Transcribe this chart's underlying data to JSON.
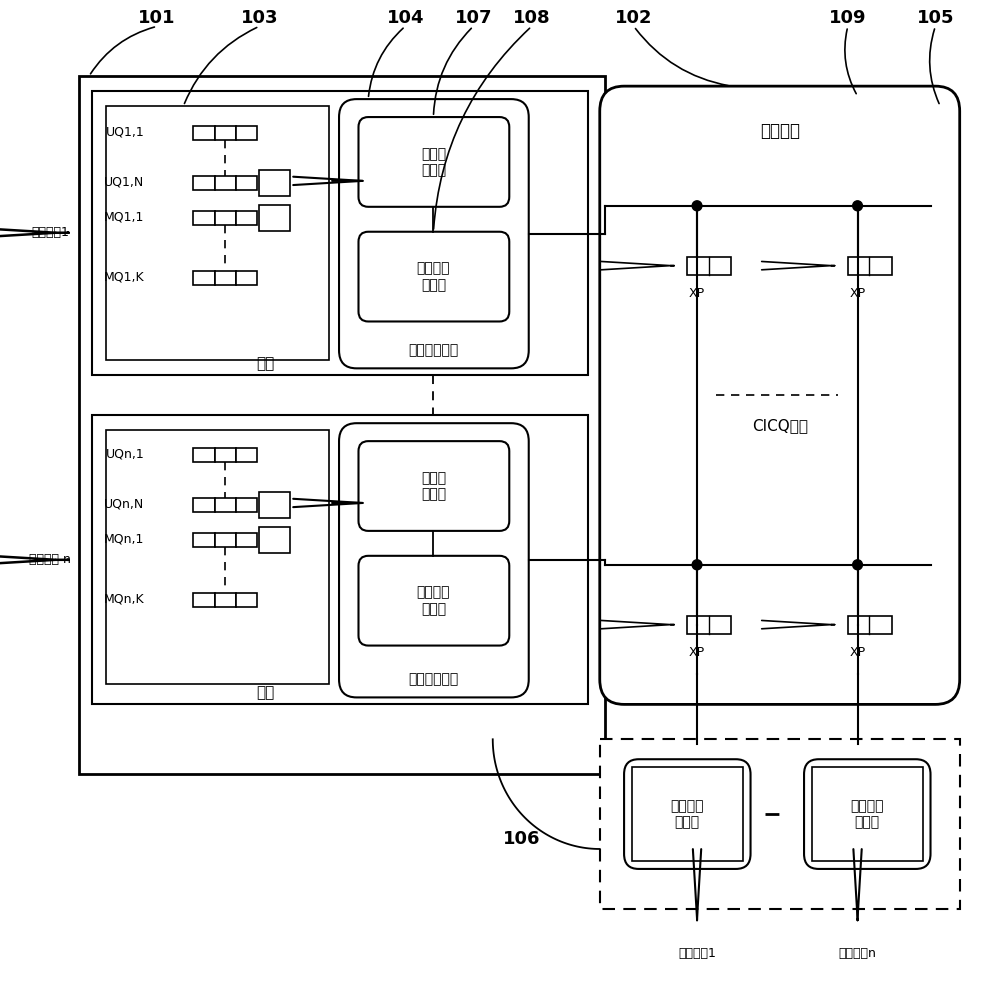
{
  "bg_color": "#ffffff",
  "fig_width": 10.0,
  "fig_height": 9.81,
  "labels": {
    "101": "101",
    "102": "102",
    "103": "103",
    "104": "104",
    "105": "105",
    "106": "106",
    "107": "107",
    "108": "108",
    "109": "109",
    "input_port_1": "输入端口1",
    "input_port_n": "输入端口 n",
    "output_port_1": "输出端口1",
    "output_port_n": "输出端口n",
    "line_card": "线卡",
    "integrated_scheduler": "集成调度装置",
    "traffic_monitor": "流量监\n测模块",
    "input_scheduler": "输入端口\n调度器",
    "output_scheduler": "输出端口\n调度器",
    "switch_chip": "交换芯片",
    "cicq": "CICQ结构",
    "XP": "XP",
    "UQ1_1": "UQ1,1",
    "UQ1_N": "UQ1,N",
    "MQ1_1": "MQ1,1",
    "MQ1_K": "MQ1,K",
    "UQn_1": "UQn,1",
    "UQn_N": "UQn,N",
    "MQn_1": "MQn,1",
    "MQn_K": "MQn,K"
  }
}
